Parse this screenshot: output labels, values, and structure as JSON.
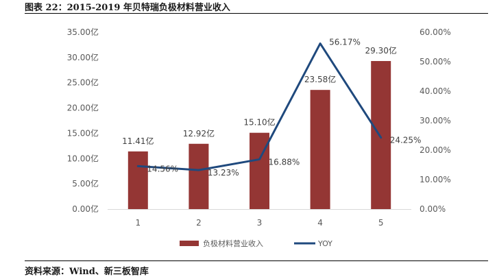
{
  "header": {
    "title": "图表 22：2015-2019 年贝特瑞负极材料营业收入"
  },
  "footer": {
    "source": "资料来源：Wind、新三板智库"
  },
  "colors": {
    "bar": "#943634",
    "line": "#1F497D",
    "axis_text": "#595959",
    "grid": "#D9D9D9"
  },
  "chart_data": {
    "type": "bar+line",
    "categories": [
      "1",
      "2",
      "3",
      "4",
      "5"
    ],
    "series": [
      {
        "name": "负极材料营业收入",
        "type": "bar",
        "axis": "left",
        "values": [
          11.41,
          12.92,
          15.1,
          23.58,
          29.3
        ],
        "labels": [
          "11.41亿",
          "12.92亿",
          "15.10亿",
          "23.58亿",
          "29.30亿"
        ]
      },
      {
        "name": "YOY",
        "type": "line",
        "axis": "right",
        "values": [
          14.56,
          13.23,
          16.88,
          56.17,
          24.25
        ],
        "labels": [
          "14.56%",
          "13.23%",
          "16.88%",
          "56.17%",
          "24.25%"
        ]
      }
    ],
    "y_left": {
      "ylim": [
        0,
        35
      ],
      "ticks": [
        "0.00亿",
        "5.00亿",
        "10.00亿",
        "15.00亿",
        "20.00亿",
        "25.00亿",
        "30.00亿",
        "35.00亿"
      ]
    },
    "y_right": {
      "ylim": [
        0,
        60
      ],
      "ticks": [
        "0.00%",
        "10.00%",
        "20.00%",
        "30.00%",
        "40.00%",
        "50.00%",
        "60.00%"
      ]
    },
    "legend": {
      "position": "bottom",
      "items": [
        "负极材料营业收入",
        "YOY"
      ]
    },
    "grid": false
  }
}
